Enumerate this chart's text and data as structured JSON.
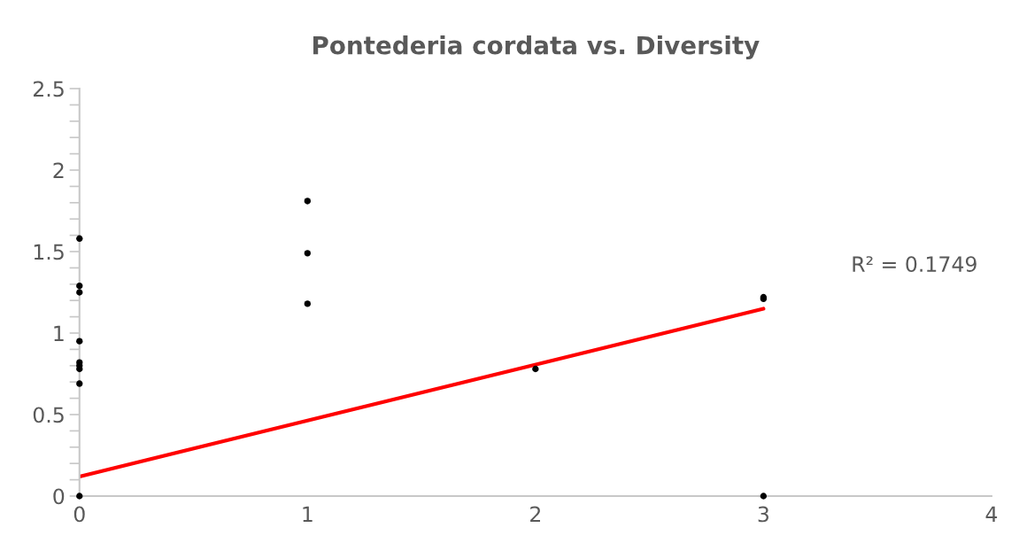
{
  "chart_data": {
    "type": "scatter",
    "title": "Pontederia cordata vs. Diversity",
    "xlim": [
      0,
      4
    ],
    "xticks": [
      0,
      1,
      2,
      3,
      4
    ],
    "ylim": [
      0,
      2.5
    ],
    "yticks": [
      0,
      {
        "value": 0.1,
        "label": null
      },
      {
        "value": 0.2,
        "label": null
      },
      {
        "value": 0.3,
        "label": null
      },
      {
        "value": 0.4,
        "label": null
      },
      0.5,
      {
        "value": 0.6,
        "label": null
      },
      {
        "value": 0.7,
        "label": null
      },
      {
        "value": 0.8,
        "label": null
      },
      {
        "value": 0.9,
        "label": null
      },
      1,
      {
        "value": 1.1,
        "label": null
      },
      {
        "value": 1.2,
        "label": null
      },
      {
        "value": 1.3,
        "label": null
      },
      {
        "value": 1.4,
        "label": null
      },
      1.5,
      {
        "value": 1.6,
        "label": null
      },
      {
        "value": 1.7,
        "label": null
      },
      {
        "value": 1.8,
        "label": null
      },
      {
        "value": 1.9,
        "label": null
      },
      2,
      {
        "value": 2.1,
        "label": null
      },
      {
        "value": 2.2,
        "label": null
      },
      {
        "value": 2.3,
        "label": null
      },
      {
        "value": 2.4,
        "label": null
      },
      2.5
    ],
    "grid": false,
    "legend": false,
    "marker": "circle",
    "series": [
      {
        "color": "#000000",
        "x": [
          0,
          0,
          0,
          0,
          0,
          0,
          0,
          0,
          0,
          1,
          1,
          1,
          2,
          3,
          3,
          3
        ],
        "values": [
          1.58,
          1.29,
          1.25,
          0.95,
          0.82,
          0.8,
          0.78,
          0.69,
          0,
          1.81,
          1.49,
          1.18,
          0.78,
          1.22,
          1.21,
          0
        ]
      },
      {
        "type": "line",
        "color": "#ff0000",
        "line_style": "solid",
        "marker": "none",
        "x": [
          0,
          3
        ],
        "values": [
          0.12,
          1.15
        ]
      }
    ],
    "annotations": [
      "R² = 0.1749"
    ]
  }
}
